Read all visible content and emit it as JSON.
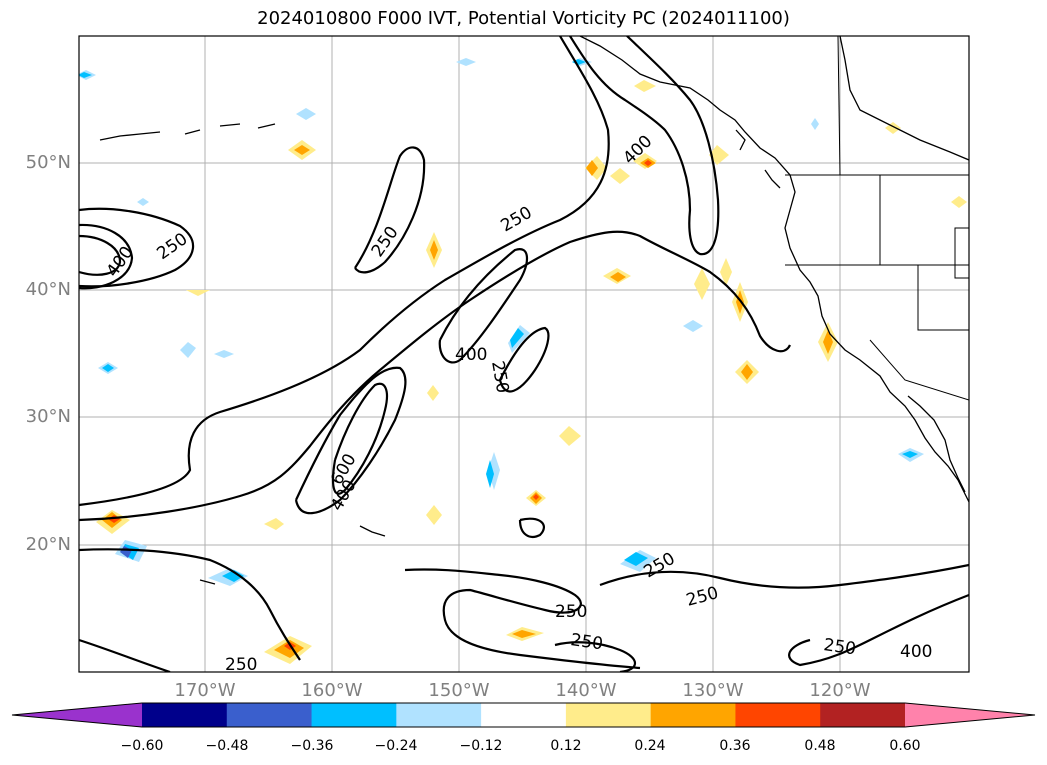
{
  "title": "2024010800 F000 IVT, Potential Vorticity PC (2024011100)",
  "map": {
    "lat_labels": [
      "50°N",
      "40°N",
      "30°N",
      "20°N"
    ],
    "lon_labels": [
      "170°W",
      "160°W",
      "150°W",
      "140°W",
      "130°W",
      "120°W"
    ],
    "contour_labels": [
      {
        "text": "400"
      },
      {
        "text": "250"
      },
      {
        "text": "250"
      },
      {
        "text": "250"
      },
      {
        "text": "400"
      },
      {
        "text": "400"
      },
      {
        "text": "250"
      },
      {
        "text": "600"
      },
      {
        "text": "400"
      },
      {
        "text": "250"
      },
      {
        "text": "250"
      },
      {
        "text": "250"
      },
      {
        "text": "250"
      },
      {
        "text": "250"
      },
      {
        "text": "400"
      },
      {
        "text": "250"
      }
    ]
  },
  "colorbar": {
    "colors": [
      "#9a32cd",
      "#00008b",
      "#3a5fcd",
      "#00bfff",
      "#b0e2ff",
      "#ffffff",
      "#ffec8b",
      "#ffa500",
      "#ff4500",
      "#b22222",
      "#ff82ab"
    ],
    "ticks": [
      "−0.60",
      "−0.48",
      "−0.36",
      "−0.24",
      "−0.12",
      "0.12",
      "0.24",
      "0.36",
      "0.48",
      "0.60"
    ]
  },
  "colors": {
    "coastline": "#000000",
    "gridline": "#b0b0b0",
    "axis_label": "#808080"
  }
}
